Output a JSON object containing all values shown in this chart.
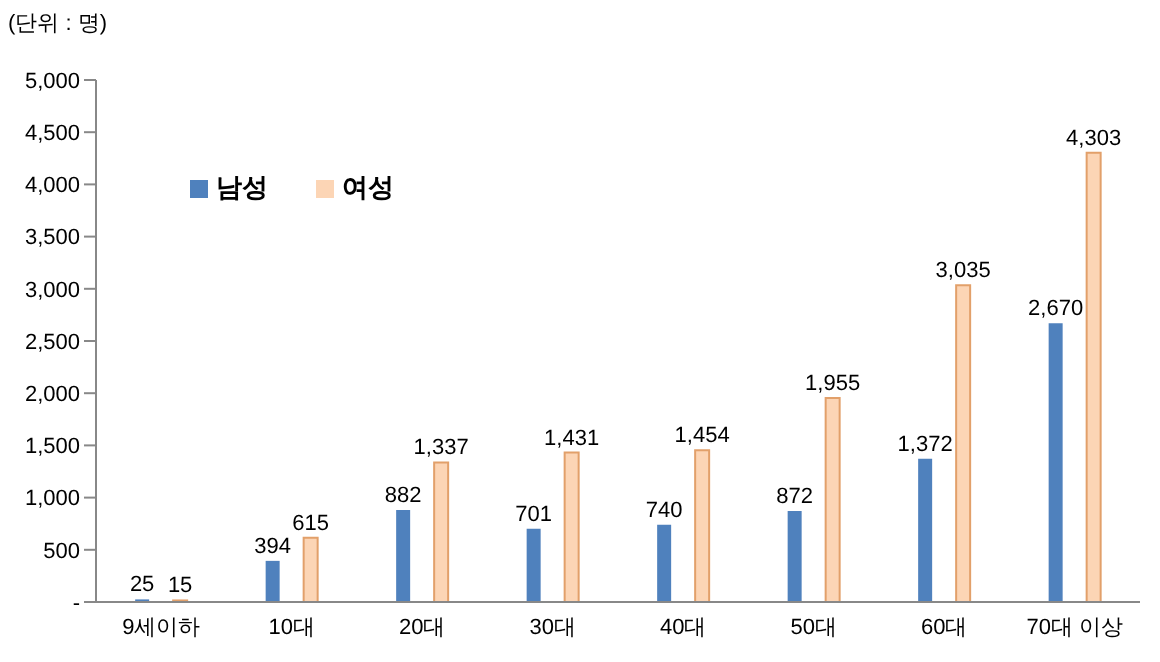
{
  "chart_data": {
    "type": "bar",
    "annotations": [
      "(단위 : 명)"
    ],
    "categories": [
      "9세이하",
      "10대",
      "20대",
      "30대",
      "40대",
      "50대",
      "60대",
      "70대 이상"
    ],
    "series": [
      {
        "name": "남성",
        "color": "#4f81bd",
        "values": [
          25,
          394,
          882,
          701,
          740,
          872,
          1372,
          2670
        ],
        "value_labels": [
          "25",
          "394",
          "882",
          "701",
          "740",
          "872",
          "1,372",
          "2,670"
        ]
      },
      {
        "name": "여성",
        "color": "#fcd5b5",
        "values": [
          15,
          615,
          1337,
          1431,
          1454,
          1955,
          3035,
          4303
        ],
        "value_labels": [
          "15",
          "615",
          "1,337",
          "1,431",
          "1,454",
          "1,955",
          "3,035",
          "4,303"
        ]
      }
    ],
    "ylim": [
      0,
      5000
    ],
    "yticks": [
      {
        "value": 0,
        "label": "-"
      },
      500,
      {
        "value": 1000,
        "label": "1,000"
      },
      {
        "value": 1500,
        "label": "1,500"
      },
      {
        "value": 2000,
        "label": "2,000"
      },
      {
        "value": 2500,
        "label": "2,500"
      },
      {
        "value": 3000,
        "label": "3,000"
      },
      {
        "value": 3500,
        "label": "3,500"
      },
      {
        "value": 4000,
        "label": "4,000"
      },
      {
        "value": 4500,
        "label": "4,500"
      },
      {
        "value": 5000,
        "label": "5,000"
      }
    ],
    "legend": "top left"
  }
}
